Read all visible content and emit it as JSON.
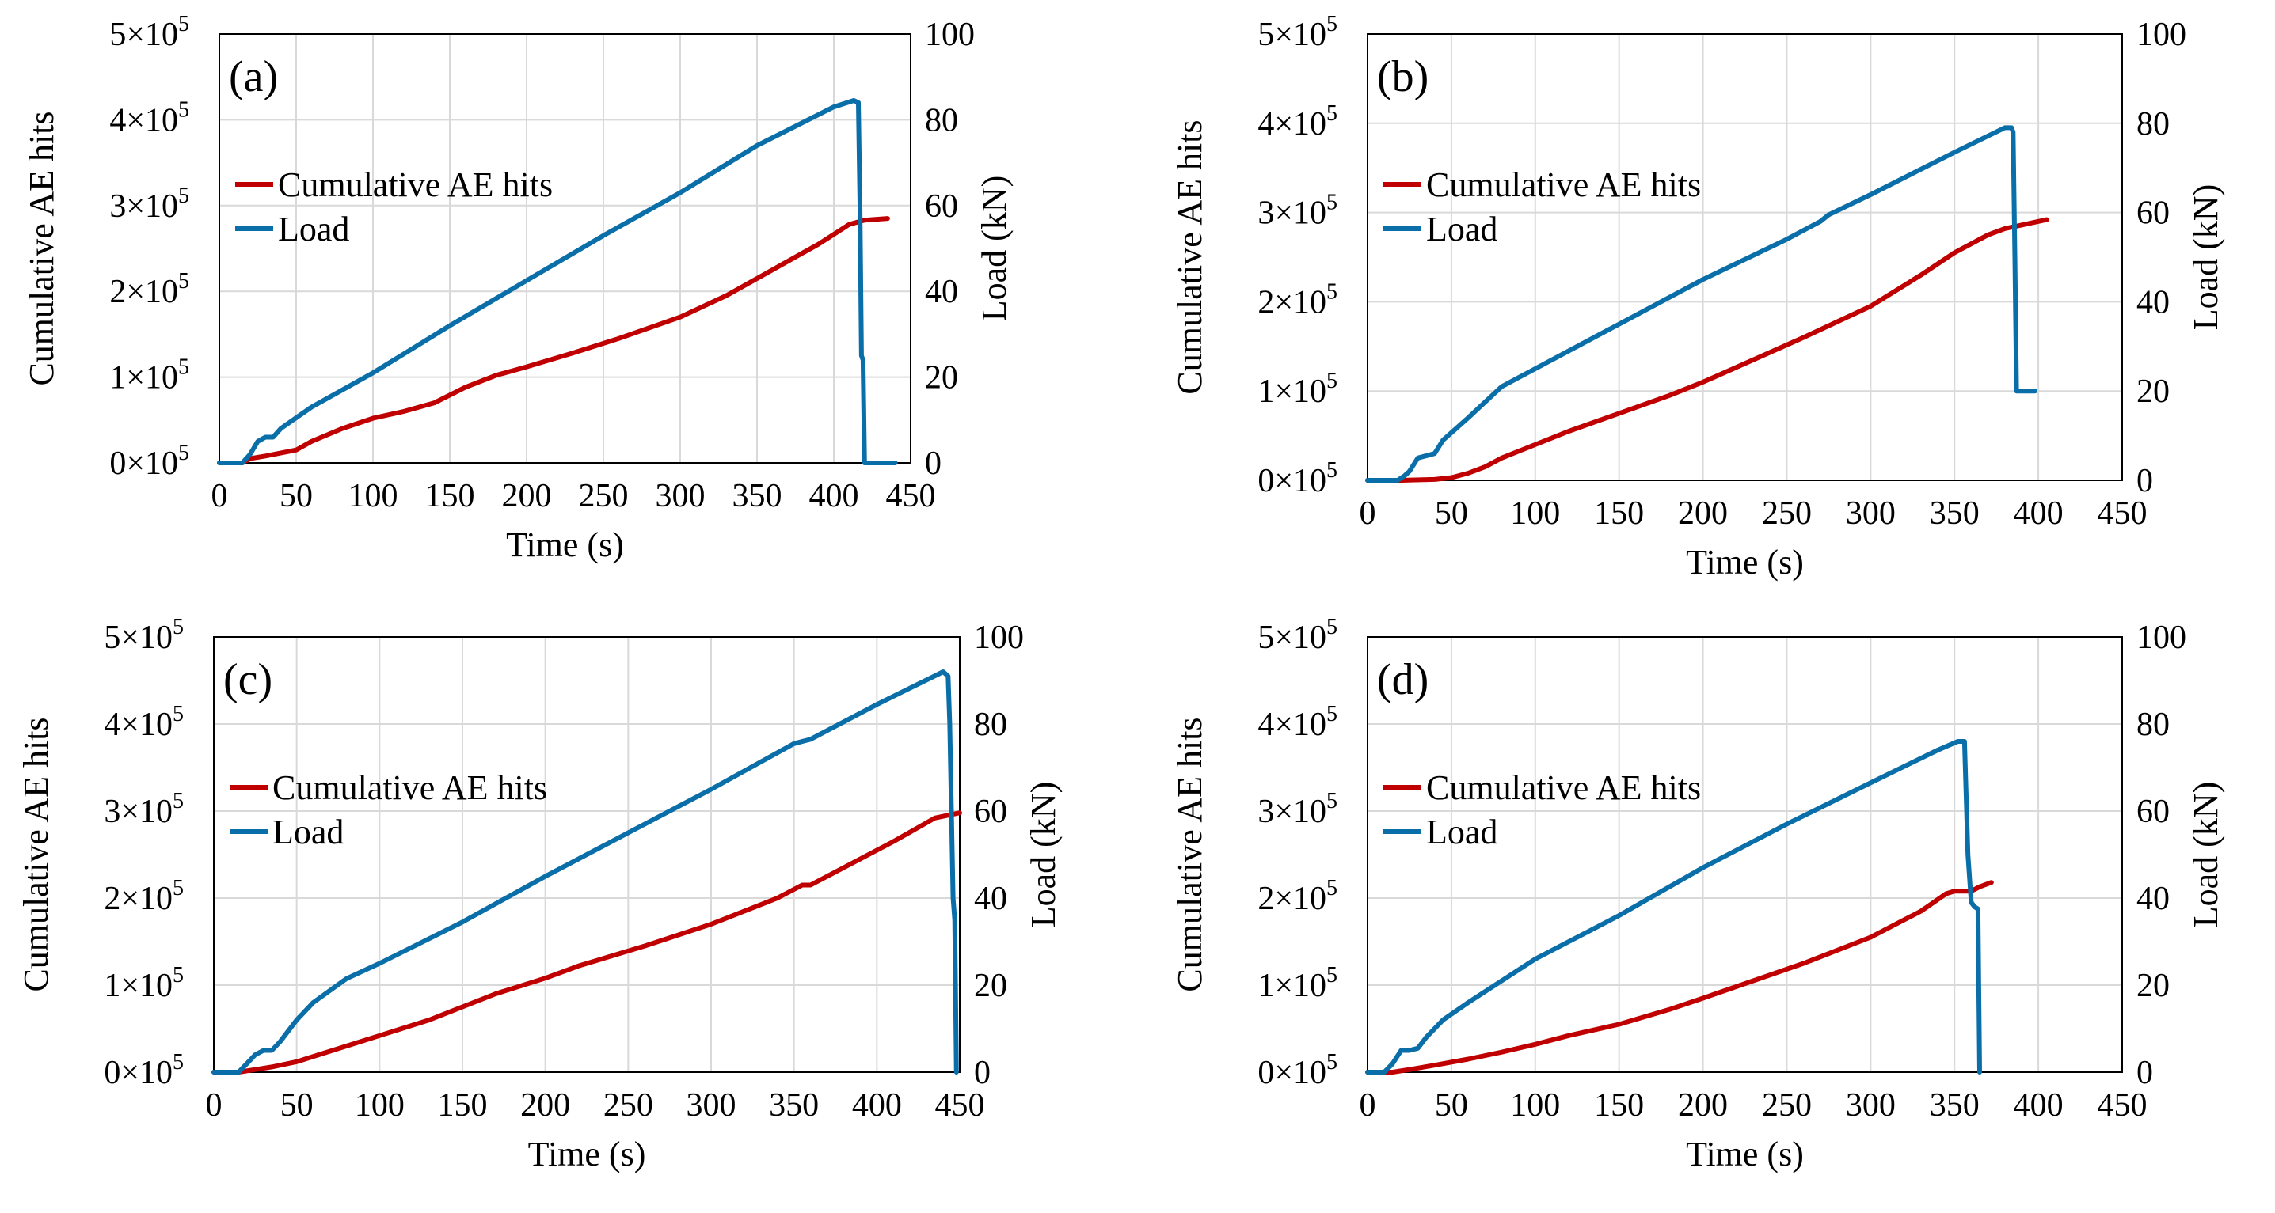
{
  "figure": {
    "layout": "2x2 grid of dual-axis line charts"
  },
  "colors": {
    "ae": "#c00000",
    "load": "#0a6ea8",
    "grid": "#d9d9d9",
    "frame": "#000000"
  },
  "chart_data": [
    {
      "type": "line",
      "panel_label": "(a)",
      "xlabel": "Time (s)",
      "ylabel_left": "Cumulative AE hits",
      "ylabel_right": "Load (kN)",
      "xlim": [
        0,
        450
      ],
      "xticks": [
        "0",
        "50",
        "100",
        "150",
        "200",
        "250",
        "300",
        "350",
        "400",
        "450"
      ],
      "ylim_left": [
        0,
        500000
      ],
      "yticks_left": [
        {
          "base": "0×10",
          "exp": "5"
        },
        {
          "base": "1×10",
          "exp": "5"
        },
        {
          "base": "2×10",
          "exp": "5"
        },
        {
          "base": "3×10",
          "exp": "5"
        },
        {
          "base": "4×10",
          "exp": "5"
        },
        {
          "base": "5×10",
          "exp": "5"
        }
      ],
      "ylim_right": [
        0,
        100
      ],
      "yticks_right": [
        "0",
        "20",
        "40",
        "60",
        "80",
        "100"
      ],
      "legend": {
        "position": "upper-left",
        "entries": [
          "Cumulative AE hits",
          "Load"
        ]
      },
      "series": [
        {
          "name": "Cumulative AE hits",
          "axis": "left",
          "x": [
            0,
            15,
            20,
            30,
            50,
            60,
            80,
            100,
            120,
            140,
            160,
            180,
            200,
            230,
            260,
            300,
            330,
            360,
            390,
            410,
            420,
            435
          ],
          "y": [
            0,
            0,
            5000,
            8000,
            15000,
            25000,
            40000,
            52000,
            60000,
            70000,
            88000,
            102000,
            112000,
            128000,
            145000,
            170000,
            195000,
            225000,
            255000,
            278000,
            283000,
            285000
          ]
        },
        {
          "name": "Load",
          "axis": "right",
          "x": [
            0,
            15,
            20,
            25,
            30,
            35,
            40,
            60,
            80,
            100,
            150,
            200,
            250,
            300,
            350,
            400,
            413,
            416,
            417,
            418,
            419,
            420,
            440
          ],
          "y": [
            0,
            0,
            2,
            5,
            6,
            6,
            8,
            13,
            17,
            21,
            32,
            42.5,
            53,
            63,
            74,
            83,
            84.5,
            84,
            60,
            25,
            24,
            0,
            0
          ]
        }
      ]
    },
    {
      "type": "line",
      "panel_label": "(b)",
      "xlabel": "Time (s)",
      "ylabel_left": "Cumulative AE hits",
      "ylabel_right": "Load (kN)",
      "xlim": [
        0,
        450
      ],
      "xticks": [
        "0",
        "50",
        "100",
        "150",
        "200",
        "250",
        "300",
        "350",
        "400",
        "450"
      ],
      "ylim_left": [
        0,
        500000
      ],
      "yticks_left": [
        {
          "base": "0×10",
          "exp": "5"
        },
        {
          "base": "1×10",
          "exp": "5"
        },
        {
          "base": "2×10",
          "exp": "5"
        },
        {
          "base": "3×10",
          "exp": "5"
        },
        {
          "base": "4×10",
          "exp": "5"
        },
        {
          "base": "5×10",
          "exp": "5"
        }
      ],
      "ylim_right": [
        0,
        100
      ],
      "yticks_right": [
        "0",
        "20",
        "40",
        "60",
        "80",
        "100"
      ],
      "legend": {
        "position": "upper-left",
        "entries": [
          "Cumulative AE hits",
          "Load"
        ]
      },
      "series": [
        {
          "name": "Cumulative AE hits",
          "axis": "left",
          "x": [
            0,
            20,
            40,
            50,
            60,
            70,
            80,
            100,
            120,
            150,
            180,
            200,
            230,
            260,
            300,
            330,
            350,
            370,
            380,
            390,
            405
          ],
          "y": [
            0,
            0,
            1000,
            3000,
            8000,
            15000,
            25000,
            40000,
            55000,
            75000,
            95000,
            110000,
            135000,
            160000,
            195000,
            230000,
            255000,
            275000,
            282000,
            286000,
            292000
          ]
        },
        {
          "name": "Load",
          "axis": "right",
          "x": [
            0,
            18,
            22,
            25,
            30,
            40,
            45,
            60,
            80,
            100,
            150,
            200,
            250,
            270,
            275,
            300,
            350,
            380,
            384,
            385,
            386,
            387,
            398
          ],
          "y": [
            0,
            0,
            1,
            2,
            5,
            6,
            9,
            14,
            21,
            25,
            35,
            45,
            54,
            58,
            59.5,
            64,
            73.5,
            79,
            79,
            78,
            50,
            20,
            20
          ]
        }
      ]
    },
    {
      "type": "line",
      "panel_label": "(c)",
      "xlabel": "Time (s)",
      "ylabel_left": "Cumulative AE hits",
      "ylabel_right": "Load (kN)",
      "xlim": [
        0,
        450
      ],
      "xticks": [
        "0",
        "50",
        "100",
        "150",
        "200",
        "250",
        "300",
        "350",
        "400",
        "450"
      ],
      "ylim_left": [
        0,
        500000
      ],
      "yticks_left": [
        {
          "base": "0×10",
          "exp": "5"
        },
        {
          "base": "1×10",
          "exp": "5"
        },
        {
          "base": "2×10",
          "exp": "5"
        },
        {
          "base": "3×10",
          "exp": "5"
        },
        {
          "base": "4×10",
          "exp": "5"
        },
        {
          "base": "5×10",
          "exp": "5"
        }
      ],
      "ylim_right": [
        0,
        100
      ],
      "yticks_right": [
        "0",
        "20",
        "40",
        "60",
        "80",
        "100"
      ],
      "legend": {
        "position": "upper-left",
        "entries": [
          "Cumulative AE hits",
          "Load"
        ]
      },
      "series": [
        {
          "name": "Cumulative AE hits",
          "axis": "left",
          "x": [
            0,
            15,
            25,
            35,
            50,
            80,
            100,
            130,
            150,
            170,
            200,
            220,
            260,
            300,
            340,
            355,
            360,
            380,
            410,
            435,
            445,
            450
          ],
          "y": [
            0,
            0,
            3000,
            6000,
            12000,
            30000,
            42000,
            60000,
            75000,
            90000,
            108000,
            122000,
            145000,
            170000,
            200000,
            215000,
            215000,
            235000,
            265000,
            292000,
            296000,
            298000
          ]
        },
        {
          "name": "Load",
          "axis": "right",
          "x": [
            0,
            15,
            20,
            25,
            30,
            35,
            40,
            50,
            60,
            80,
            100,
            150,
            200,
            250,
            300,
            350,
            360,
            400,
            440,
            443,
            444,
            446,
            447,
            448
          ],
          "y": [
            0,
            0,
            2,
            4,
            5,
            5,
            7,
            12,
            16,
            21.5,
            25,
            34.5,
            45,
            55,
            65,
            75.5,
            76.5,
            84.5,
            92,
            91,
            80,
            40,
            35,
            0
          ]
        }
      ]
    },
    {
      "type": "line",
      "panel_label": "(d)",
      "xlabel": "Time (s)",
      "ylabel_left": "Cumulative AE hits",
      "ylabel_right": "Load (kN)",
      "xlim": [
        0,
        450
      ],
      "xticks": [
        "0",
        "50",
        "100",
        "150",
        "200",
        "250",
        "300",
        "350",
        "400",
        "450"
      ],
      "ylim_left": [
        0,
        500000
      ],
      "yticks_left": [
        {
          "base": "0×10",
          "exp": "5"
        },
        {
          "base": "1×10",
          "exp": "5"
        },
        {
          "base": "2×10",
          "exp": "5"
        },
        {
          "base": "3×10",
          "exp": "5"
        },
        {
          "base": "4×10",
          "exp": "5"
        },
        {
          "base": "5×10",
          "exp": "5"
        }
      ],
      "ylim_right": [
        0,
        100
      ],
      "yticks_right": [
        "0",
        "20",
        "40",
        "60",
        "80",
        "100"
      ],
      "legend": {
        "position": "upper-left",
        "entries": [
          "Cumulative AE hits",
          "Load"
        ]
      },
      "series": [
        {
          "name": "Cumulative AE hits",
          "axis": "left",
          "x": [
            0,
            15,
            25,
            40,
            60,
            80,
            100,
            120,
            150,
            180,
            200,
            230,
            260,
            300,
            330,
            345,
            350,
            360,
            365,
            372
          ],
          "y": [
            0,
            0,
            3000,
            8000,
            15000,
            23000,
            32000,
            42000,
            55000,
            72000,
            85000,
            105000,
            125000,
            155000,
            185000,
            205000,
            208000,
            208000,
            213000,
            218000
          ]
        },
        {
          "name": "Load",
          "axis": "right",
          "x": [
            0,
            10,
            15,
            20,
            25,
            30,
            35,
            45,
            60,
            80,
            100,
            150,
            200,
            250,
            300,
            340,
            352,
            356,
            358,
            360,
            362,
            364,
            365
          ],
          "y": [
            0,
            0,
            2,
            5,
            5,
            5.5,
            8,
            12,
            16,
            21,
            26,
            36,
            47,
            57,
            66.5,
            74,
            76,
            76,
            50,
            39,
            38,
            37.5,
            0
          ]
        }
      ]
    }
  ]
}
